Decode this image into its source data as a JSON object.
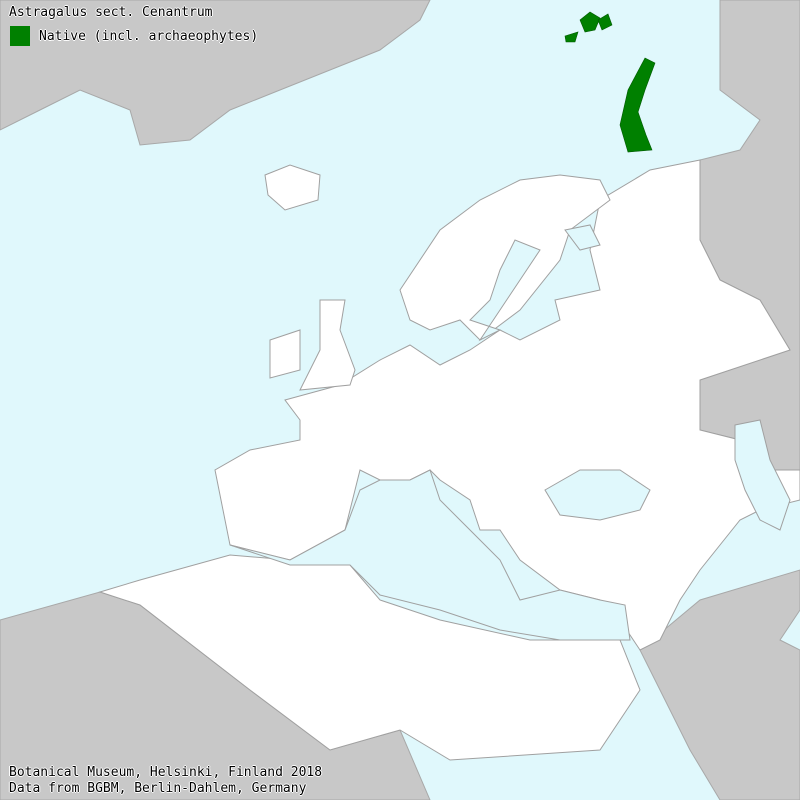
{
  "map": {
    "title": "Astragalus sect. Cenantrum",
    "legend": [
      {
        "label": "Native (incl. archaeophytes)",
        "color": "#008000"
      }
    ],
    "credits": [
      "Botanical Museum, Helsinki, Finland 2018",
      "Data from BGBM, Berlin-Dahlem, Germany"
    ],
    "colors": {
      "sea": "#e0f8fc",
      "land": "#ffffff",
      "outside_area": "#c8c8c8",
      "border": "#a0a0a0",
      "native": "#008000"
    }
  }
}
